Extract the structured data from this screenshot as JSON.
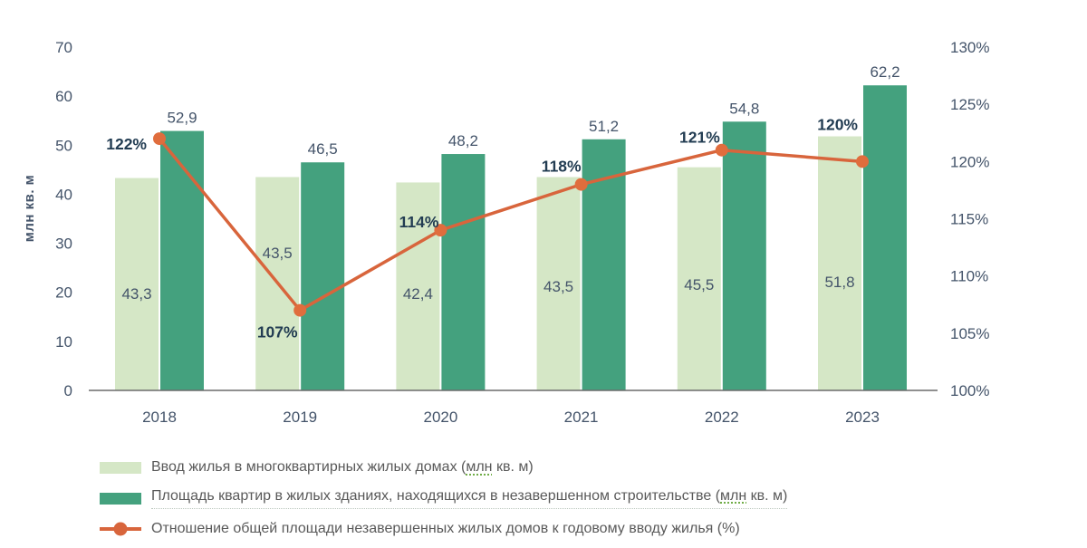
{
  "chart_data": {
    "type": "combo-bar-line",
    "title": "",
    "categories": [
      "2018",
      "2019",
      "2020",
      "2021",
      "2022",
      "2023"
    ],
    "series": [
      {
        "name": "Ввод жилья в многоквартирных жилых домах (млн кв. м)",
        "type": "bar",
        "color": "#d5e7c6",
        "values": [
          43.3,
          43.5,
          42.4,
          43.5,
          45.5,
          51.8
        ],
        "labels": [
          "43,3",
          "43,5",
          "42,4",
          "43,5",
          "45,5",
          "51,8"
        ]
      },
      {
        "name": "Площадь квартир в жилых зданиях, находящихся в незавершенном  строительстве (млн кв. м)",
        "type": "bar",
        "color": "#44a17e",
        "values": [
          52.9,
          46.5,
          48.2,
          51.2,
          54.8,
          62.2
        ],
        "labels": [
          "52,9",
          "46,5",
          "48,2",
          "51,2",
          "54,8",
          "62,2"
        ]
      },
      {
        "name": "Отношение общей площади незавершенных  жилых домов к годовому вводу жилья (%)",
        "type": "line",
        "color": "#d8653c",
        "marker_color": "#e06d3d",
        "values": [
          122,
          107,
          114,
          118,
          121,
          120
        ],
        "labels": [
          "122%",
          "107%",
          "114%",
          "118%",
          "121%",
          "120%"
        ]
      }
    ],
    "left_axis": {
      "title": "млн кв. м",
      "min": 0,
      "max": 70,
      "tick_labels": [
        "0",
        "10",
        "20",
        "30",
        "40",
        "50",
        "60",
        "70"
      ]
    },
    "right_axis": {
      "min": 100,
      "max": 130,
      "tick_labels": [
        "100%",
        "105%",
        "110%",
        "115%",
        "120%",
        "125%",
        "130%"
      ]
    },
    "grid": false,
    "legend_position": "bottom"
  },
  "legend": {
    "items": [
      {
        "pre": "Ввод жилья в многоквартирных жилых домах (",
        "underlined": "млн",
        "post": " кв. м)"
      },
      {
        "pre": "Площадь квартир в жилых зданиях, находящихся в незавершенном  строительстве (",
        "underlined": "млн",
        "post": " кв. м)"
      },
      {
        "label": "Отношение общей площади незавершенных  жилых домов к годовому вводу жилья (%)"
      }
    ]
  },
  "colors": {
    "light_green": "#d5e7c6",
    "dark_green": "#44a17e",
    "orange": "#d8653c",
    "tick_text": "#44546a",
    "pct_label": "#223c52",
    "legend_text": "#595959",
    "axis_line": "#6b6b6b",
    "spell_underline": "#70ad47"
  }
}
